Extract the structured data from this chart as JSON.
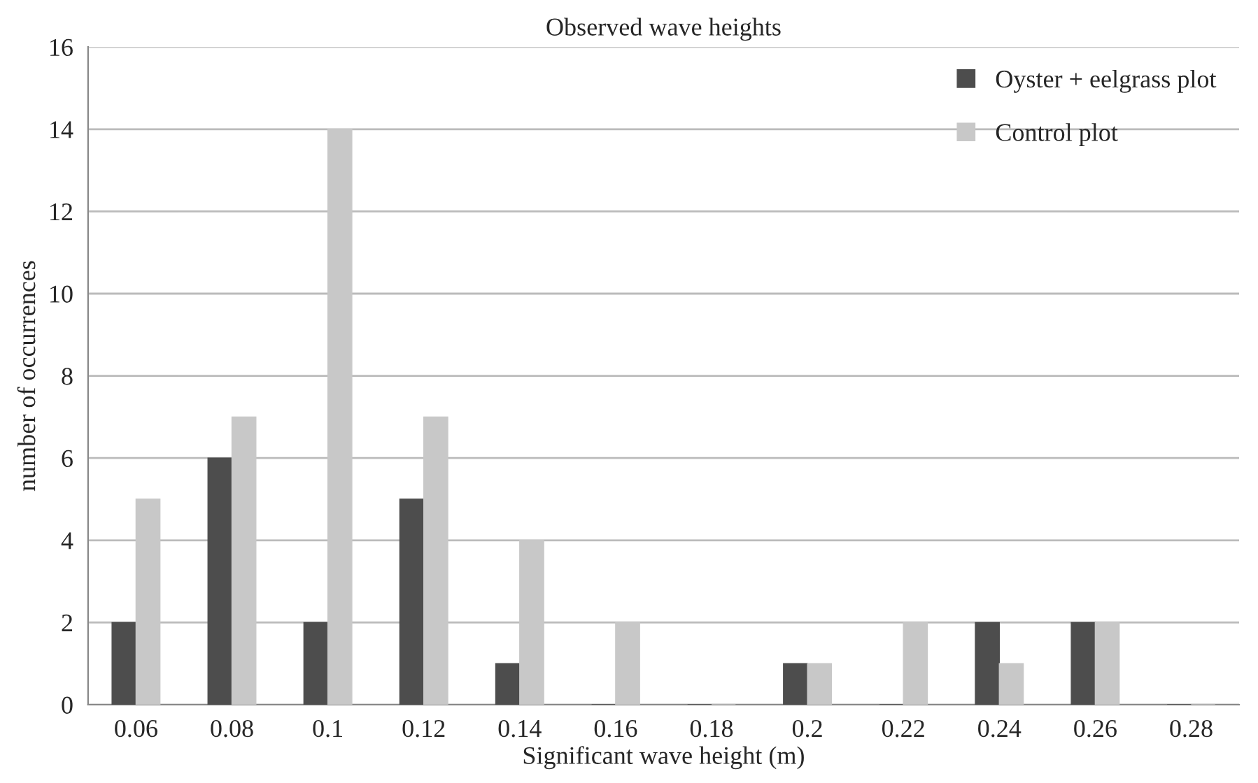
{
  "chart_data": {
    "type": "bar",
    "title": "Observed wave heights",
    "xlabel": "Significant wave height (m)",
    "ylabel": "number of occurrences",
    "categories": [
      "0.06",
      "0.08",
      "0.1",
      "0.12",
      "0.14",
      "0.16",
      "0.18",
      "0.2",
      "0.22",
      "0.24",
      "0.26",
      "0.28"
    ],
    "series": [
      {
        "name": "Oyster + eelgrass plot",
        "color": "#4d4d4d",
        "values": [
          2,
          6,
          2,
          5,
          1,
          0,
          0,
          1,
          0,
          2,
          2,
          0
        ]
      },
      {
        "name": "Control plot",
        "color": "#c8c8c8",
        "values": [
          5,
          7,
          14,
          7,
          4,
          2,
          0,
          1,
          2,
          1,
          2,
          0
        ]
      }
    ],
    "ylim": [
      0,
      16
    ],
    "yticks": [
      0,
      2,
      4,
      6,
      8,
      10,
      12,
      14,
      16
    ],
    "grid": "y",
    "legend": "top right"
  }
}
